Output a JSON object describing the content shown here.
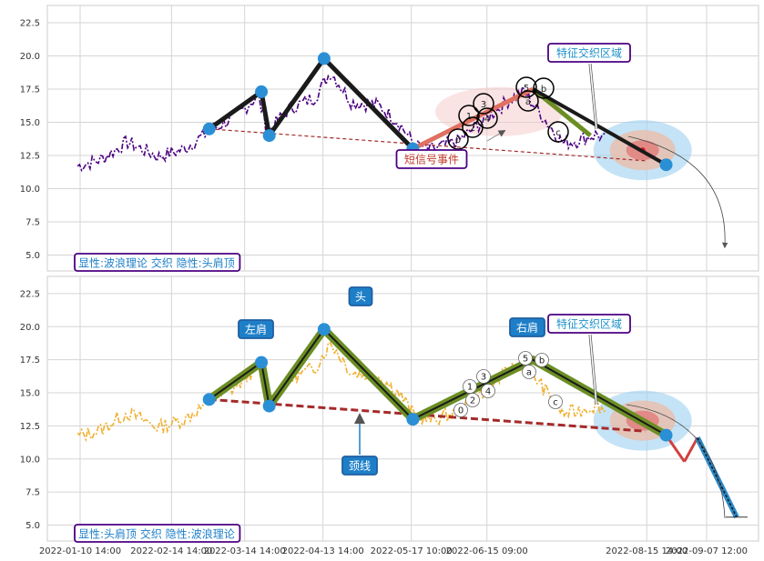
{
  "chart_data": [
    {
      "type": "line",
      "panel": "top",
      "x_ticks": [
        "2022-01-10 14:00",
        "2022-02-14 14:00",
        "2022-03-14 14:00",
        "2022-04-13 14:00",
        "2022-05-17 10:00",
        "2022-06-15 09:00",
        "2022-08-15 14:00",
        "2022-09-07 12:00"
      ],
      "y_ticks": [
        5.0,
        7.5,
        10.0,
        12.5,
        15.0,
        17.5,
        20.0,
        22.5
      ],
      "ylim": [
        3.8,
        23.8
      ],
      "grid": true,
      "price_color": "#4b0082",
      "price_style": "dash-dot",
      "swing_points": [
        {
          "x": "2022-03-01",
          "y": 14.5
        },
        {
          "x": "2022-03-21",
          "y": 17.3
        },
        {
          "x": "2022-03-24",
          "y": 14.0
        },
        {
          "x": "2022-04-14",
          "y": 19.8
        },
        {
          "x": "2022-05-18",
          "y": 13.0
        },
        {
          "x": "2022-07-03",
          "y": 17.5
        },
        {
          "x": "2022-07-25",
          "y": 14.0
        },
        {
          "x": "2022-08-02",
          "y": 13.8
        },
        {
          "x": "2022-08-23",
          "y": 11.8
        }
      ],
      "neckline": [
        {
          "x": "2022-03-01",
          "y": 14.5
        },
        {
          "x": "2022-08-15",
          "y": 12.1
        }
      ],
      "elliott_labels": [
        "0",
        "1",
        "2",
        "3",
        "4",
        "5",
        "a",
        "b",
        "c"
      ],
      "annotations": [
        {
          "text": "特征交织区域",
          "color": "#1e90c8"
        },
        {
          "text": "短信号事件",
          "color": "#c0392b"
        }
      ],
      "caption": "显性:波浪理论 交织 隐性:头肩顶"
    },
    {
      "type": "line",
      "panel": "bottom",
      "x_ticks": [
        "2022-01-10 14:00",
        "2022-02-14 14:00",
        "2022-03-14 14:00",
        "2022-04-13 14:00",
        "2022-05-17 10:00",
        "2022-06-15 09:00",
        "2022-08-15 14:00",
        "2022-09-07 12:00"
      ],
      "y_ticks": [
        5.0,
        7.5,
        10.0,
        12.5,
        15.0,
        17.5,
        20.0,
        22.5
      ],
      "ylim": [
        3.8,
        23.8
      ],
      "grid": true,
      "price_color": "#f0b030",
      "price_style": "dash-dot",
      "swing_points": [
        {
          "x": "2022-03-01",
          "y": 14.5
        },
        {
          "x": "2022-03-21",
          "y": 17.3
        },
        {
          "x": "2022-03-24",
          "y": 14.0
        },
        {
          "x": "2022-04-14",
          "y": 19.8
        },
        {
          "x": "2022-05-18",
          "y": 13.0
        },
        {
          "x": "2022-07-03",
          "y": 17.5
        },
        {
          "x": "2022-08-23",
          "y": 11.8
        }
      ],
      "projection": [
        {
          "x": "2022-08-23",
          "y": 11.8
        },
        {
          "x": "2022-08-30",
          "y": 9.8
        },
        {
          "x": "2022-09-04",
          "y": 11.6
        },
        {
          "x": "2022-09-19",
          "y": 5.6
        }
      ],
      "neckline": [
        {
          "x": "2022-03-01",
          "y": 14.5
        },
        {
          "x": "2022-08-15",
          "y": 12.1
        }
      ],
      "elliott_labels": [
        "0",
        "1",
        "2",
        "3",
        "4",
        "5",
        "a",
        "b",
        "c"
      ],
      "annotations": [
        {
          "text": "头",
          "color": "#1e7fc8"
        },
        {
          "text": "左肩",
          "color": "#1e7fc8"
        },
        {
          "text": "右肩",
          "color": "#1e7fc8"
        },
        {
          "text": "颈线",
          "color": "#1e7fc8"
        },
        {
          "text": "特征交织区域",
          "color": "#1e90c8"
        }
      ],
      "caption": "显性:头肩顶 交织 隐性:波浪理论"
    }
  ]
}
